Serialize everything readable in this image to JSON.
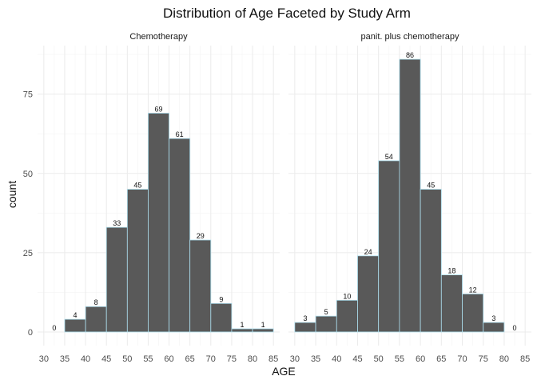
{
  "chart_data": {
    "type": "bar",
    "title": "Distribution of Age Faceted by Study Arm",
    "xlabel": "AGE",
    "ylabel": "count",
    "x_ticks": [
      30,
      35,
      40,
      45,
      50,
      55,
      60,
      65,
      70,
      75,
      80,
      85
    ],
    "y_ticks": [
      0,
      25,
      50,
      75
    ],
    "xlim": [
      28.5,
      86.5
    ],
    "ylim": [
      -4.3,
      90.3
    ],
    "bin_width": 5,
    "grid": true,
    "panels": [
      {
        "name": "Chemotherapy",
        "bins": [
          {
            "center": 32.5,
            "count": 0
          },
          {
            "center": 37.5,
            "count": 4
          },
          {
            "center": 42.5,
            "count": 8
          },
          {
            "center": 47.5,
            "count": 33
          },
          {
            "center": 52.5,
            "count": 45
          },
          {
            "center": 57.5,
            "count": 69
          },
          {
            "center": 62.5,
            "count": 61
          },
          {
            "center": 67.5,
            "count": 29
          },
          {
            "center": 72.5,
            "count": 9
          },
          {
            "center": 77.5,
            "count": 1
          },
          {
            "center": 82.5,
            "count": 1
          }
        ]
      },
      {
        "name": "panit. plus chemotherapy",
        "bins": [
          {
            "center": 32.5,
            "count": 3
          },
          {
            "center": 37.5,
            "count": 5
          },
          {
            "center": 42.5,
            "count": 10
          },
          {
            "center": 47.5,
            "count": 24
          },
          {
            "center": 52.5,
            "count": 54
          },
          {
            "center": 57.5,
            "count": 86
          },
          {
            "center": 62.5,
            "count": 45
          },
          {
            "center": 67.5,
            "count": 18
          },
          {
            "center": 72.5,
            "count": 12
          },
          {
            "center": 77.5,
            "count": 3
          },
          {
            "center": 82.5,
            "count": 0
          }
        ]
      }
    ]
  }
}
